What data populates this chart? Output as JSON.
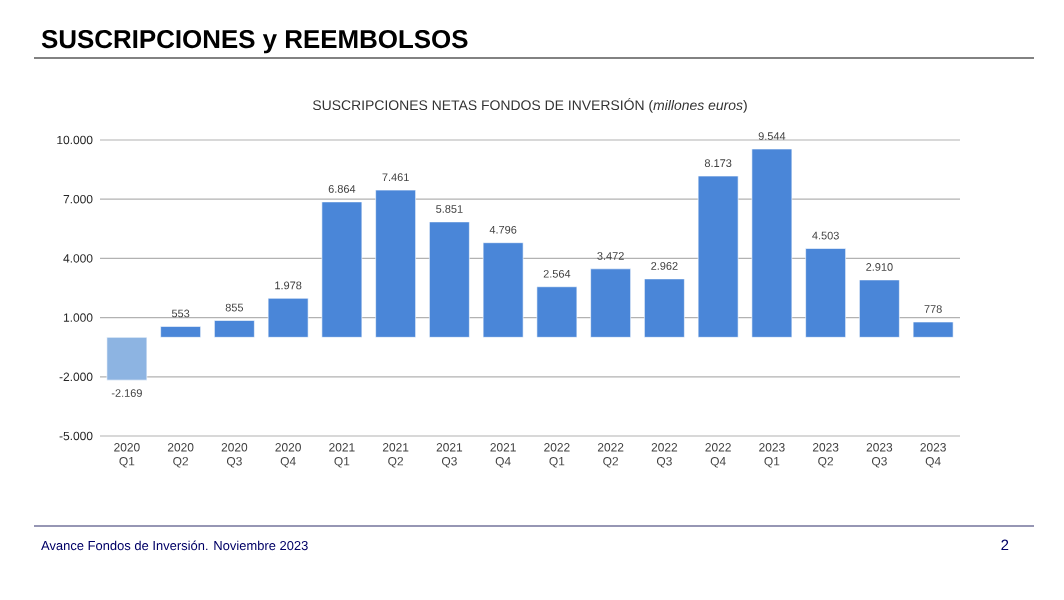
{
  "chart_data": {
    "type": "bar",
    "title": "SUSCRIPCIONES y REEMBOLSOS",
    "subtitle": "SUSCRIPCIONES NETAS FONDOS DE INVERSIÓN (*millones euros*)",
    "categories": [
      "2020 Q1",
      "2020 Q2",
      "2020 Q3",
      "2020 Q4",
      "2021 Q1",
      "2021 Q2",
      "2021 Q3",
      "2021 Q4",
      "2022 Q1",
      "2022 Q2",
      "2022 Q3",
      "2022 Q4",
      "2023 Q1",
      "2023 Q2",
      "2023 Q3",
      "2023 Q4"
    ],
    "values": [
      -2169,
      553,
      855,
      1978,
      6864,
      7461,
      5851,
      4796,
      2564,
      3472,
      2962,
      8173,
      9544,
      4503,
      2910,
      778
    ],
    "value_labels": [
      "-2.169",
      "553",
      "855",
      "1.978",
      "6.864",
      "7.461",
      "5.851",
      "4.796",
      "2.564",
      "3.472",
      "2.962",
      "8.173",
      "9.544",
      "4.503",
      "2.910",
      "778"
    ],
    "colors": [
      "#8db4e2",
      "#4a86d8",
      "#4a86d8",
      "#4a86d8",
      "#4a86d8",
      "#4a86d8",
      "#4a86d8",
      "#4a86d8",
      "#4a86d8",
      "#4a86d8",
      "#4a86d8",
      "#4a86d8",
      "#4a86d8",
      "#4a86d8",
      "#4a86d8",
      "#4a86d8"
    ],
    "ylim": [
      -5000,
      10000
    ],
    "yticks": [
      {
        "value": -5000,
        "label": "-5.000"
      },
      {
        "value": -2000,
        "label": "-2.000"
      },
      {
        "value": 1000,
        "label": "1.000"
      },
      {
        "value": 4000,
        "label": "4.000"
      },
      {
        "value": 7000,
        "label": "7.000"
      },
      {
        "value": 10000,
        "label": "10.000"
      }
    ],
    "grid": "y",
    "legend": false,
    "annotations": [
      "Avance Fondos de Inversión. Noviembre 2023",
      "2"
    ]
  }
}
